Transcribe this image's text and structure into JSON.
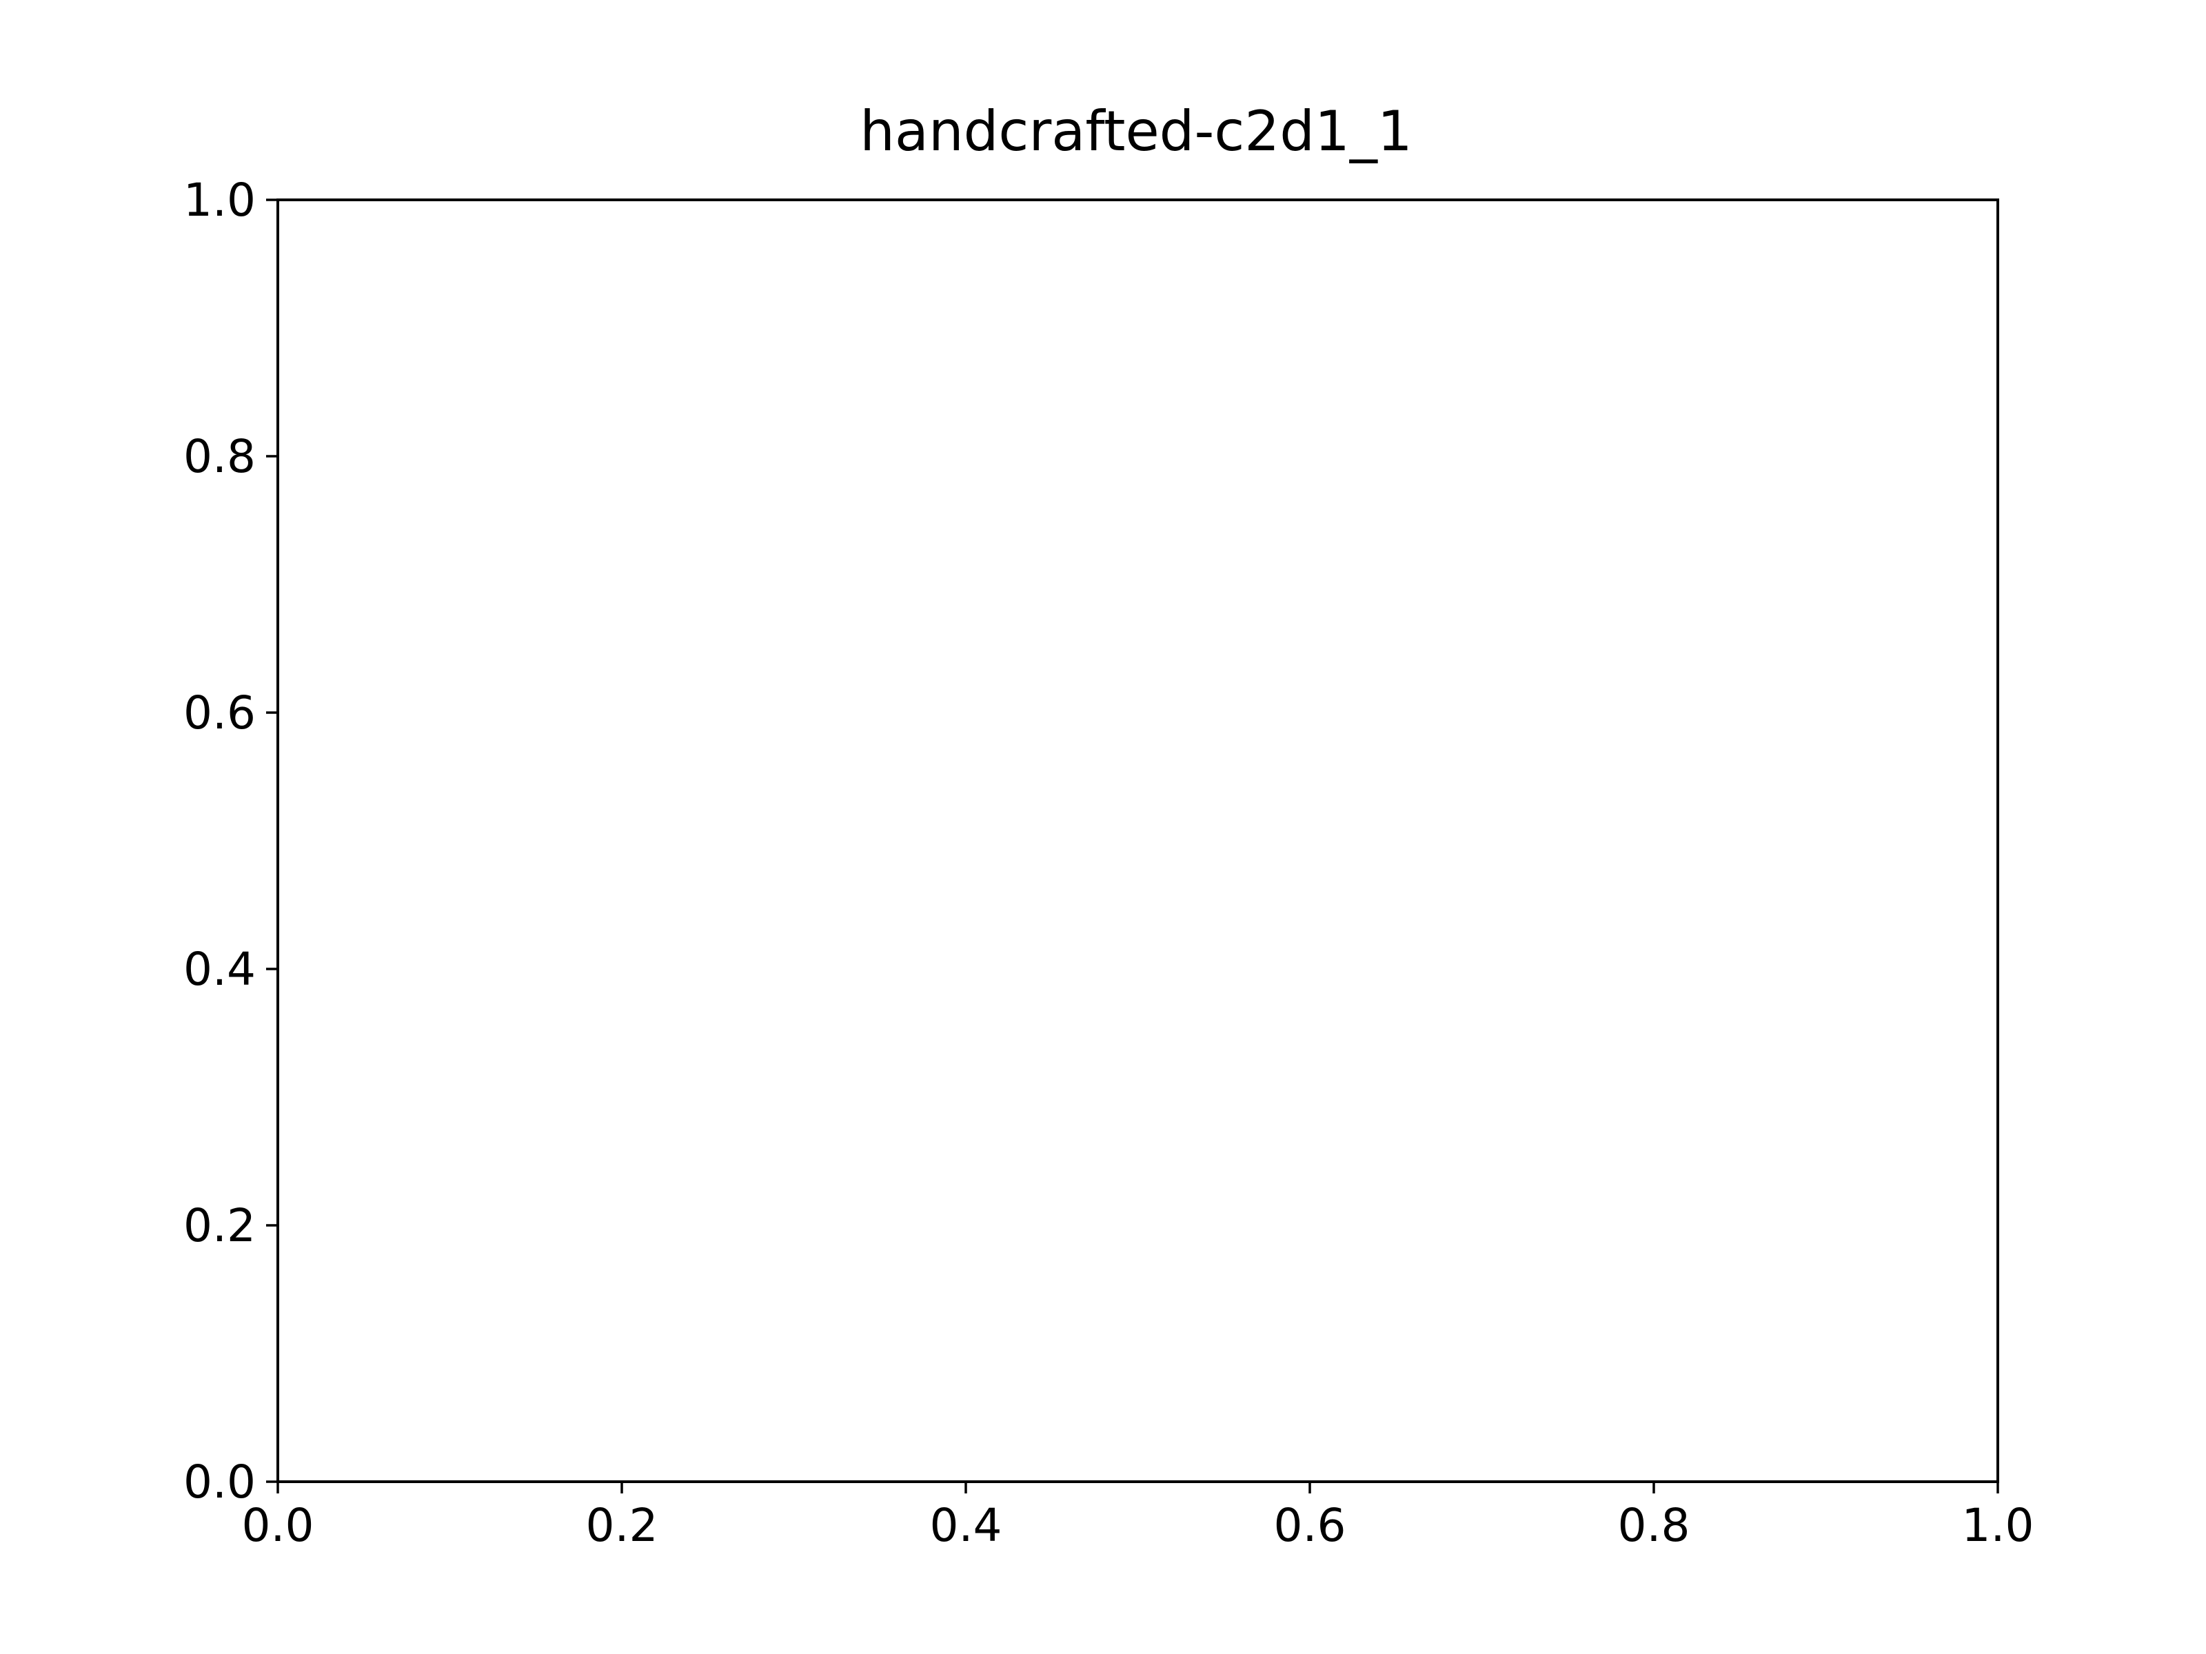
{
  "chart_data": {
    "type": "scatter",
    "title": "handcrafted-c2d1_1",
    "xlabel": "",
    "ylabel": "",
    "xlim": [
      0.0,
      1.0
    ],
    "ylim": [
      0.0,
      1.0
    ],
    "x_ticks": [
      "0.0",
      "0.2",
      "0.4",
      "0.6",
      "0.8",
      "1.0"
    ],
    "y_ticks": [
      "0.0",
      "0.2",
      "0.4",
      "0.6",
      "0.8",
      "1.0"
    ],
    "grid": false,
    "series": []
  }
}
